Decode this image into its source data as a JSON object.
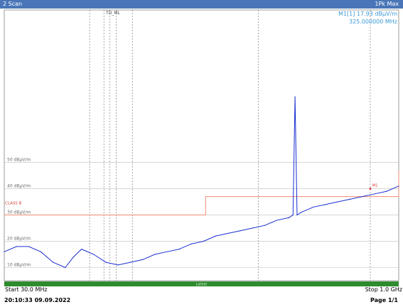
{
  "window": {
    "title": "2 Scan",
    "mode": "1Pk Max"
  },
  "marker": {
    "label": "M1[1]",
    "level": "17.93 dBµV/m",
    "frequency": "325.000000 MHz"
  },
  "footer": {
    "start": "Start 30.0 MHz",
    "stop": "Stop 1.0 GHz",
    "bar_text": "Latest"
  },
  "status": {
    "timestamp": "20:10:33  09.09.2022",
    "page": "Page 1/1"
  },
  "colors": {
    "trace": "#1a2fd0",
    "limit": "#f08a70",
    "grid": "#b4b4b4",
    "header": "#4a76b8",
    "footer_bar": "#2e8b2e",
    "marker_text": "#3a9ad9"
  },
  "chart_data": {
    "type": "line",
    "xlabel": "",
    "ylabel": "",
    "xlim": [
      30,
      1000
    ],
    "ylim": [
      5,
      108
    ],
    "reference_labels": [
      {
        "text": "50 dBµV/m",
        "level": 50
      },
      {
        "text": "40 dBµV/m",
        "level": 40
      },
      {
        "text": "30 dBµV/m",
        "level": 30
      },
      {
        "text": "20 dBµV/m",
        "level": 20
      },
      {
        "text": "10 dBµV/m",
        "level": 10
      }
    ],
    "limit_label": {
      "text": "CLASS B",
      "level": 34
    },
    "vertical_line_label": "TD_ML",
    "marker_peak_label": "M1",
    "limit_line": [
      {
        "x": [
          30,
          230
        ],
        "y": 30
      },
      {
        "x": [
          230,
          525
        ],
        "y": 30
      },
      {
        "x": [
          525,
          1000
        ],
        "y": 37
      },
      {
        "x": [
          1000,
          1000
        ],
        "y": 47
      }
    ],
    "series": [
      {
        "x": [
          30,
          60,
          90,
          120,
          150,
          180,
          200,
          220,
          250,
          280,
          310,
          340,
          370,
          400,
          430,
          460,
          490,
          520,
          550,
          580,
          610,
          640,
          670,
          700,
          730,
          740,
          745,
          750,
          760,
          790,
          820,
          850,
          880,
          910,
          940,
          970,
          1000
        ],
        "values": [
          16,
          18,
          18,
          16,
          12,
          10,
          14,
          17,
          15,
          12,
          11,
          12,
          13,
          15,
          16,
          17,
          19,
          20,
          22,
          23,
          24,
          25,
          26,
          28,
          29,
          30,
          75,
          30,
          31,
          33,
          34,
          35,
          36,
          37,
          38,
          39,
          41
        ]
      }
    ],
    "vertical_lines_x": [
      240,
      275,
      290,
      305,
      345,
      655,
      930
    ]
  }
}
